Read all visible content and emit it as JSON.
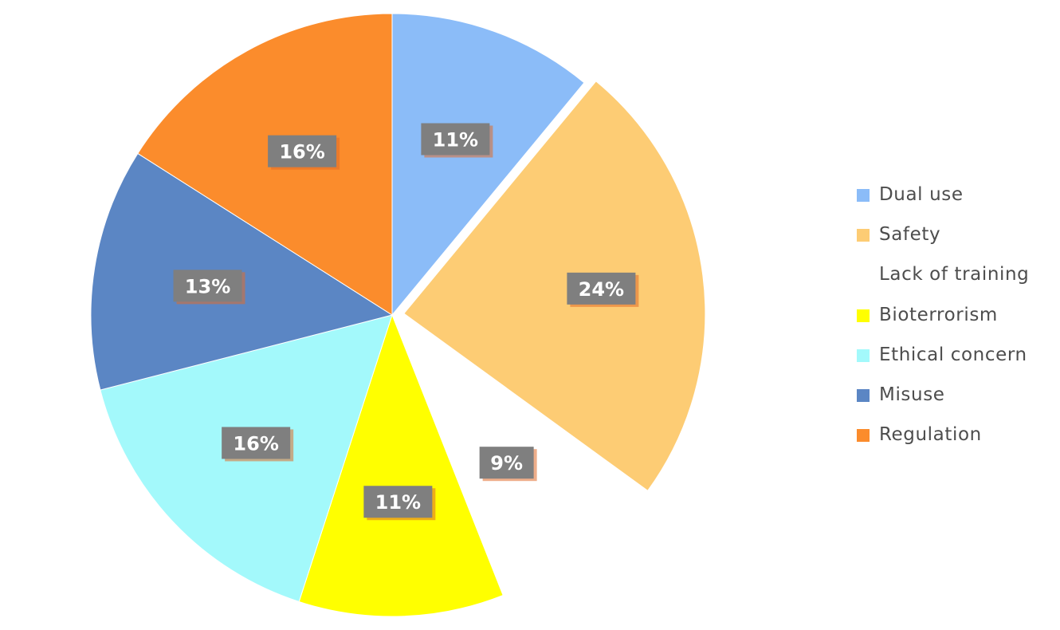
{
  "chart_data": {
    "type": "pie",
    "title": "",
    "categories": [
      "Dual use",
      "Safety",
      "Lack of training",
      "Bioterrorism",
      "Ethical concern",
      "Misuse",
      "Regulation"
    ],
    "values": [
      11,
      24,
      9,
      11,
      16,
      13,
      16
    ],
    "data_labels": [
      "11%",
      "24%",
      "9%",
      "11%",
      "16%",
      "13%",
      "16%"
    ],
    "colors": [
      "#8bbcf8",
      "#fdcc74",
      "#ffffff",
      "#ffff00",
      "#a3f9fb",
      "#5b86c4",
      "#fb8c2c"
    ],
    "exploded": [
      "Safety"
    ],
    "legend_position": "right",
    "data_label_style": {
      "box_color": "#7f7f7f",
      "text_color": "#ffffff",
      "shadow_color": "#e06b2a"
    }
  }
}
